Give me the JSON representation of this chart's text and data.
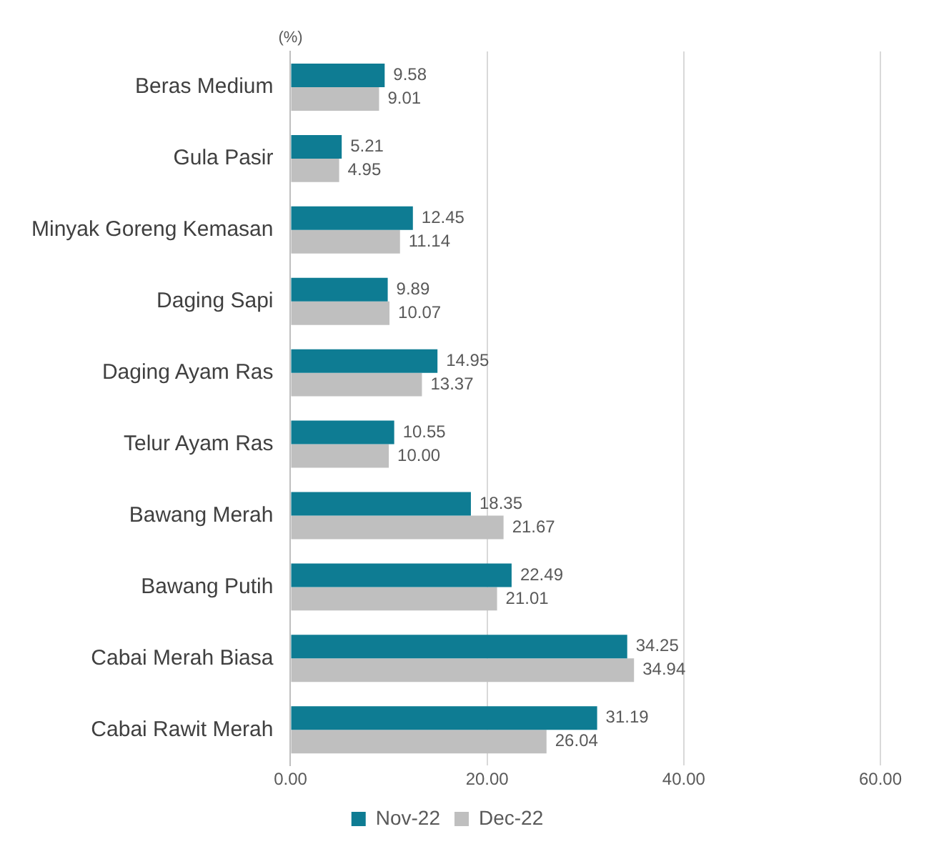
{
  "chart_data": {
    "type": "bar",
    "orientation": "horizontal",
    "categories": [
      "Beras Medium",
      "Gula Pasir",
      "Minyak Goreng Kemasan",
      "Daging Sapi",
      "Daging Ayam Ras",
      "Telur Ayam Ras",
      "Bawang Merah",
      "Bawang Putih",
      "Cabai Merah Biasa",
      "Cabai Rawit Merah"
    ],
    "series": [
      {
        "name": "Nov-22",
        "color": "#0e7c93",
        "values": [
          9.58,
          5.21,
          12.45,
          9.89,
          14.95,
          10.55,
          18.35,
          22.49,
          34.25,
          31.19
        ],
        "value_labels": [
          "9.58",
          "5.21",
          "12.45",
          "9.89",
          "14.95",
          "10.55",
          "18.35",
          "22.49",
          "34.25",
          "31.19"
        ]
      },
      {
        "name": "Dec-22",
        "color": "#bfbfbf",
        "values": [
          9.01,
          4.95,
          11.14,
          10.07,
          13.37,
          10.0,
          21.67,
          21.01,
          34.94,
          26.04
        ],
        "value_labels": [
          "9.01",
          "4.95",
          "11.14",
          "10.07",
          "13.37",
          "10.00",
          "21.67",
          "21.01",
          "34.94",
          "26.04"
        ]
      }
    ],
    "xlim": [
      0,
      60
    ],
    "xticks": [
      {
        "value": 0,
        "label": "0.00"
      },
      {
        "value": 20,
        "label": "20.00"
      },
      {
        "value": 40,
        "label": "40.00"
      },
      {
        "value": 60,
        "label": "60.00"
      }
    ],
    "annotations": [
      "(%)"
    ],
    "grid": "x",
    "legend": "bottom"
  }
}
